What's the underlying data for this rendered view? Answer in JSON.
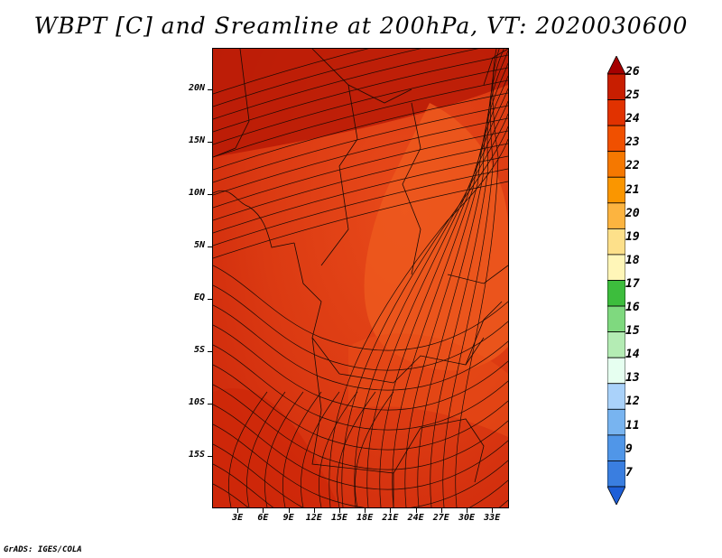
{
  "title": "WBPT [C] and Sreamline at 200hPa, VT: 2020030600",
  "credit": "GrADS: IGES/COLA",
  "map": {
    "lon_range": [
      0,
      35
    ],
    "lat_range": [
      -20,
      24
    ],
    "lat_labels": [
      {
        "text": "20N",
        "lat": 20
      },
      {
        "text": "15N",
        "lat": 15
      },
      {
        "text": "10N",
        "lat": 10
      },
      {
        "text": "5N",
        "lat": 5
      },
      {
        "text": "EQ",
        "lat": 0
      },
      {
        "text": "5S",
        "lat": -5
      },
      {
        "text": "10S",
        "lat": -10
      },
      {
        "text": "15S",
        "lat": -15
      }
    ],
    "lon_labels": [
      {
        "text": "3E",
        "lon": 3
      },
      {
        "text": "6E",
        "lon": 6
      },
      {
        "text": "9E",
        "lon": 9
      },
      {
        "text": "12E",
        "lon": 12
      },
      {
        "text": "15E",
        "lon": 15
      },
      {
        "text": "18E",
        "lon": 18
      },
      {
        "text": "21E",
        "lon": 21
      },
      {
        "text": "24E",
        "lon": 24
      },
      {
        "text": "27E",
        "lon": 27
      },
      {
        "text": "30E",
        "lon": 30
      },
      {
        "text": "33E",
        "lon": 33
      }
    ]
  },
  "colorbar": {
    "levels": [
      "26",
      "25",
      "24",
      "23",
      "22",
      "21",
      "20",
      "19",
      "18",
      "17",
      "16",
      "15",
      "14",
      "13",
      "12",
      "11",
      "9",
      "7"
    ],
    "colors": [
      "#a50000",
      "#c81e00",
      "#e13200",
      "#f05000",
      "#f57800",
      "#fa9600",
      "#fcb440",
      "#fde08a",
      "#fff6b8",
      "#3dbd3d",
      "#7fd97f",
      "#b4ecb4",
      "#e6fff0",
      "#aad2fa",
      "#78b4f0",
      "#5096e8",
      "#3a7ee0",
      "#1e5fd8"
    ]
  }
}
